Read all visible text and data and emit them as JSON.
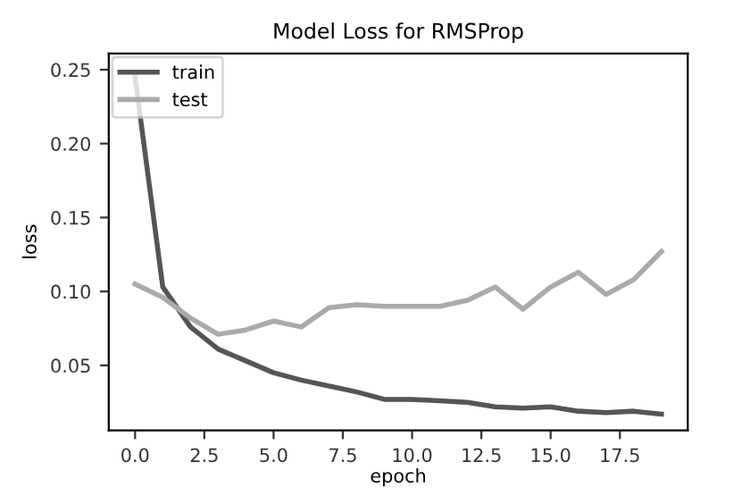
{
  "chart_data": {
    "type": "line",
    "title": "Model Loss for RMSProp",
    "xlabel": "epoch",
    "ylabel": "loss",
    "x": [
      0,
      1,
      2,
      3,
      4,
      5,
      6,
      7,
      8,
      9,
      10,
      11,
      12,
      13,
      14,
      15,
      16,
      17,
      18,
      19
    ],
    "series": [
      {
        "name": "train",
        "color": "#555555",
        "values": [
          0.245,
          0.103,
          0.076,
          0.061,
          0.053,
          0.045,
          0.04,
          0.036,
          0.032,
          0.027,
          0.027,
          0.026,
          0.025,
          0.022,
          0.021,
          0.022,
          0.019,
          0.018,
          0.019,
          0.017
        ]
      },
      {
        "name": "test",
        "color": "#aaaaaa",
        "values": [
          0.105,
          0.096,
          0.082,
          0.071,
          0.074,
          0.08,
          0.076,
          0.089,
          0.091,
          0.09,
          0.09,
          0.09,
          0.094,
          0.103,
          0.088,
          0.103,
          0.113,
          0.098,
          0.108,
          0.127
        ]
      }
    ],
    "xlim": [
      -0.95,
      19.95
    ],
    "ylim": [
      0.006,
      0.261
    ],
    "xticks": [
      {
        "value": 0,
        "label": "0.0"
      },
      {
        "value": 2.5,
        "label": "2.5"
      },
      {
        "value": 5,
        "label": "5.0"
      },
      {
        "value": 7.5,
        "label": "7.5"
      },
      {
        "value": 10,
        "label": "10.0"
      },
      {
        "value": 12.5,
        "label": "12.5"
      },
      {
        "value": 15,
        "label": "15.0"
      },
      {
        "value": 17.5,
        "label": "17.5"
      }
    ],
    "yticks": [
      {
        "value": 0.05,
        "label": "0.05"
      },
      {
        "value": 0.1,
        "label": "0.10"
      },
      {
        "value": 0.15,
        "label": "0.15"
      },
      {
        "value": 0.2,
        "label": "0.20"
      },
      {
        "value": 0.25,
        "label": "0.25"
      }
    ],
    "legend": "top left",
    "grid": false,
    "marker": "none",
    "line_style": "solid"
  }
}
